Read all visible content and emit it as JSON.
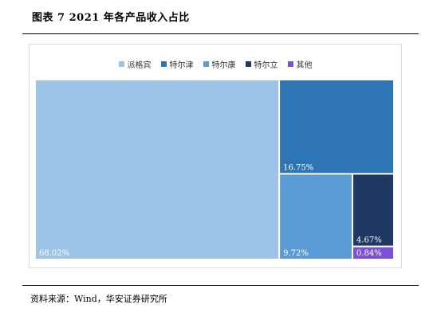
{
  "title": "图表 7 2021 年各产品收入占比",
  "source": "资料来源：Wind，华安证券研究所",
  "chart_data": {
    "type": "treemap",
    "series": [
      {
        "name": "派格宾",
        "value": 68.02,
        "label": "68.02%",
        "color": "#9dc3e6"
      },
      {
        "name": "特尔津",
        "value": 16.75,
        "label": "16.75%",
        "color": "#2e75b6"
      },
      {
        "name": "特尔康",
        "value": 9.72,
        "label": "9.72%",
        "color": "#5b9bd5"
      },
      {
        "name": "特尔立",
        "value": 4.67,
        "label": "4.67%",
        "color": "#1f3864"
      },
      {
        "name": "其他",
        "value": 0.84,
        "label": "0.84%",
        "color": "#7b4fd6"
      }
    ],
    "legend": "top-center"
  }
}
